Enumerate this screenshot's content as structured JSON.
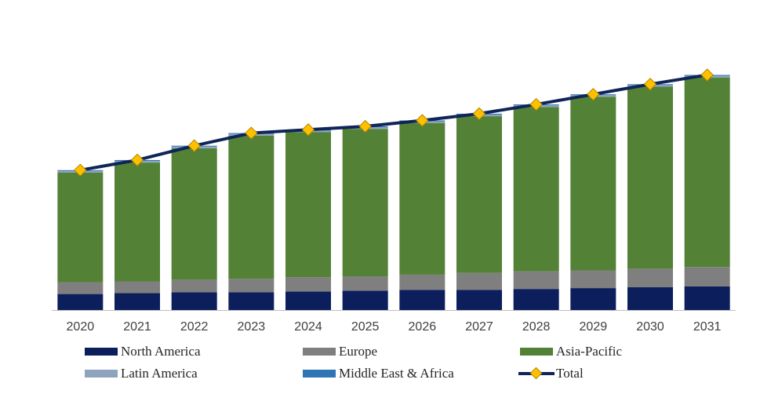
{
  "chart_data": {
    "type": "bar",
    "stacked": true,
    "categories": [
      "2020",
      "2021",
      "2022",
      "2023",
      "2024",
      "2025",
      "2026",
      "2027",
      "2028",
      "2029",
      "2030",
      "2031"
    ],
    "series": [
      {
        "name": "North America",
        "color": "#0c1f5c",
        "values": [
          19,
          20,
          21,
          21,
          22,
          23,
          24,
          24,
          25,
          26,
          27,
          28
        ]
      },
      {
        "name": "Europe",
        "color": "#7f7f7f",
        "values": [
          14,
          14,
          15,
          16,
          17,
          17,
          18,
          20,
          21,
          21,
          22,
          23
        ]
      },
      {
        "name": "Asia-Pacific",
        "color": "#538135",
        "values": [
          130,
          141,
          156,
          170,
          172,
          175,
          180,
          186,
          195,
          206,
          216,
          225
        ]
      },
      {
        "name": "Latin America",
        "color": "#8ea3bd",
        "values": [
          2,
          2,
          2,
          2,
          2,
          2,
          2,
          2,
          2,
          2,
          2,
          2
        ]
      },
      {
        "name": "Middle East & Africa",
        "color": "#2e75b6",
        "values": [
          1,
          1,
          1,
          1,
          1,
          1,
          1,
          1,
          1,
          1,
          1,
          1
        ]
      }
    ],
    "line_series": {
      "name": "Total",
      "color": "#0f2557",
      "marker_color": "#ffc000",
      "marker": "diamond",
      "values": [
        166,
        178,
        195,
        210,
        214,
        218,
        225,
        233,
        244,
        256,
        268,
        279
      ]
    },
    "ylim": [
      0,
      340
    ],
    "y_axis_visible": false,
    "grid": false,
    "legend_position": "bottom"
  }
}
